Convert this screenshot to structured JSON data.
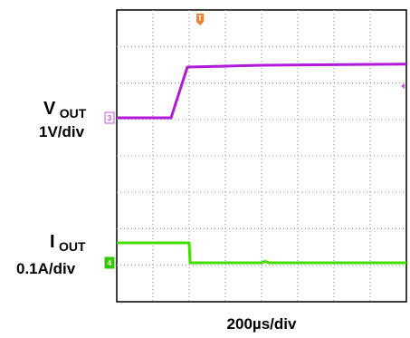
{
  "chart_data": {
    "type": "line",
    "xlabel": "200µs/div",
    "x_units": "ms",
    "xlim": [
      0,
      1.6
    ],
    "series": [
      {
        "name": "VOUT",
        "channel": "3",
        "scale_label": "1V/div",
        "color": "#b01ad8",
        "marker_color": "#c855de",
        "points": [
          [
            0,
            0
          ],
          [
            0.3,
            0
          ],
          [
            0.39,
            1.4
          ],
          [
            0.8,
            1.45
          ],
          [
            1.6,
            1.48
          ]
        ]
      },
      {
        "name": "IOUT",
        "channel": "4",
        "scale_label": "0.1A/div",
        "color": "#43de00",
        "marker_color": "#35c800",
        "points": [
          [
            0,
            0.055
          ],
          [
            0.4,
            0.055
          ],
          [
            0.405,
            0
          ],
          [
            0.8,
            0
          ],
          [
            0.82,
            0.004
          ],
          [
            0.84,
            0
          ],
          [
            1.6,
            0
          ]
        ]
      }
    ],
    "grid": "8x8 dotted",
    "trigger_color": "#f47c26",
    "trigger_label": "T"
  },
  "labels": {
    "vout_main": "V",
    "vout_sub": "OUT",
    "vout_scale": "1V/div",
    "iout_main": "I",
    "iout_sub": "OUT",
    "iout_scale": "0.1A/div",
    "time_scale": "200µs/div"
  }
}
